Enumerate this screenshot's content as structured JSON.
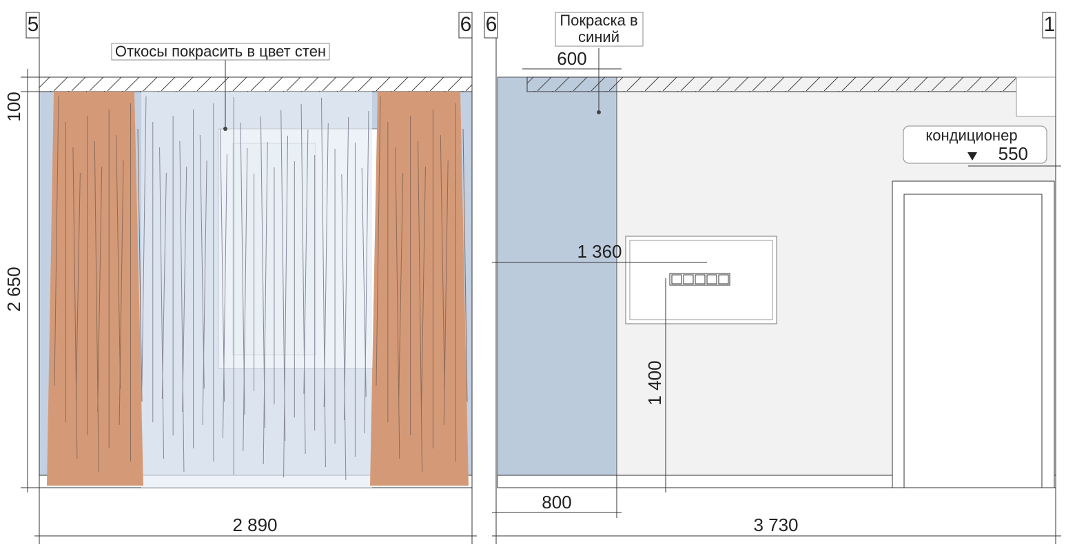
{
  "left_elevation": {
    "axis_left": "5",
    "axis_right": "6",
    "note": "Откосы покрасить в цвет стен",
    "dimensions": {
      "ceiling": "100",
      "height": "2 650",
      "width": "2 890"
    }
  },
  "right_elevation": {
    "axis_left": "6",
    "axis_right": "1",
    "note": [
      "Покраска в",
      "синий"
    ],
    "ac_label": "кондиционер",
    "dimensions": {
      "blue_top": "600",
      "socket_offset": "1 360",
      "socket_height": "1 400",
      "blue_width": "800",
      "width": "3 730",
      "ac_offset": "550"
    }
  }
}
